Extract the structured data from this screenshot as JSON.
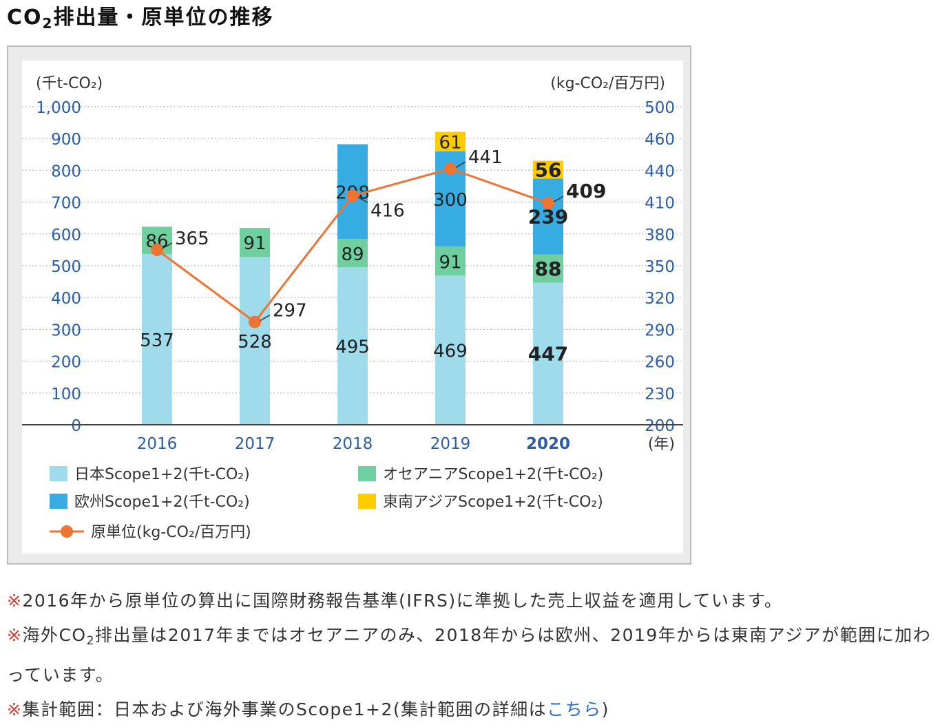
{
  "title": {
    "prefix": "CO",
    "sub": "2",
    "suffix": "排出量・原単位の推移"
  },
  "chart_data": {
    "type": "bar+line",
    "stacked": true,
    "categories": [
      "2016",
      "2017",
      "2018",
      "2019",
      "2020"
    ],
    "highlight_category": "2020",
    "x_unit_label": "(年)",
    "y_left": {
      "label": "(千t-CO₂)",
      "min": 0,
      "max": 1000,
      "ticks": [
        "0",
        "100",
        "200",
        "300",
        "400",
        "500",
        "600",
        "700",
        "800",
        "900",
        "1,000"
      ]
    },
    "y_right": {
      "label": "(kg-CO₂/百万円)",
      "min": 200,
      "max": 500,
      "ticks": [
        "200",
        "230",
        "260",
        "290",
        "320",
        "350",
        "380",
        "410",
        "440",
        "460",
        "500"
      ]
    },
    "series": [
      {
        "name": "日本Scope1+2(千t-CO₂)",
        "color": "#9fdbeb",
        "values": [
          537,
          528,
          495,
          469,
          447
        ]
      },
      {
        "name": "オセアニアScope1+2(千t-CO₂)",
        "color": "#6fcf9f",
        "values": [
          86,
          91,
          89,
          91,
          88
        ]
      },
      {
        "name": "欧州Scope1+2(千t-CO₂)",
        "color": "#36ace3",
        "values": [
          null,
          null,
          298,
          300,
          239
        ]
      },
      {
        "name": "東南アジアScope1+2(千t-CO₂)",
        "color": "#ffcc00",
        "values": [
          null,
          null,
          null,
          61,
          56
        ]
      }
    ],
    "line": {
      "name": "原単位(kg-CO₂/百万円)",
      "color": "#ee7433",
      "values": [
        365,
        297,
        416,
        441,
        409
      ],
      "labels": [
        "365",
        "297",
        "416",
        "441",
        "409"
      ]
    }
  },
  "notes": [
    {
      "mark": "※",
      "text": "2016年から原単位の算出に国際財務報告基準(IFRS)に準拠した売上収益を適用しています。"
    },
    {
      "mark": "※",
      "pre": "海外CO",
      "sub": "2",
      "text": "排出量は2017年まではオセアニアのみ、2018年からは欧州、2019年からは東南アジアが範囲に加わっています。"
    },
    {
      "mark": "※",
      "text": "集計範囲：日本および海外事業のScope1+2(集計範囲の詳細は",
      "link": "こちら",
      "end": ")"
    }
  ]
}
